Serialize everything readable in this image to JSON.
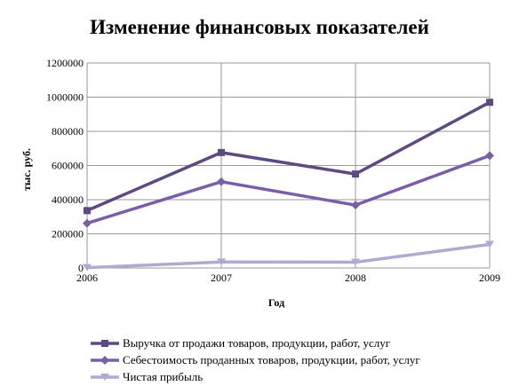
{
  "chart_data": {
    "type": "line",
    "title": "Изменение финансовых показателей",
    "xlabel": "Год",
    "ylabel": "тыс. руб.",
    "x": [
      "2006",
      "2007",
      "2008",
      "2009"
    ],
    "ylim": [
      0,
      1200000
    ],
    "yticks": [
      "0",
      "200000",
      "400000",
      "600000",
      "800000",
      "1000000",
      "1200000"
    ],
    "grid": true,
    "legend_position": "bottom",
    "series": [
      {
        "name": "Выручка от продажи товаров, продукции, работ, услуг",
        "values": [
          336000,
          676000,
          550000,
          970000
        ],
        "color": "#5c4a80",
        "marker": "square"
      },
      {
        "name": "Себестоимость проданных товаров, продукции, работ, услуг",
        "values": [
          262000,
          505000,
          368000,
          658000
        ],
        "color": "#7b5ea8",
        "marker": "diamond"
      },
      {
        "name": "Чистая прибыль",
        "values": [
          2000,
          35000,
          34000,
          138000
        ],
        "color": "#b3a8d0",
        "marker": "triangle"
      }
    ]
  }
}
